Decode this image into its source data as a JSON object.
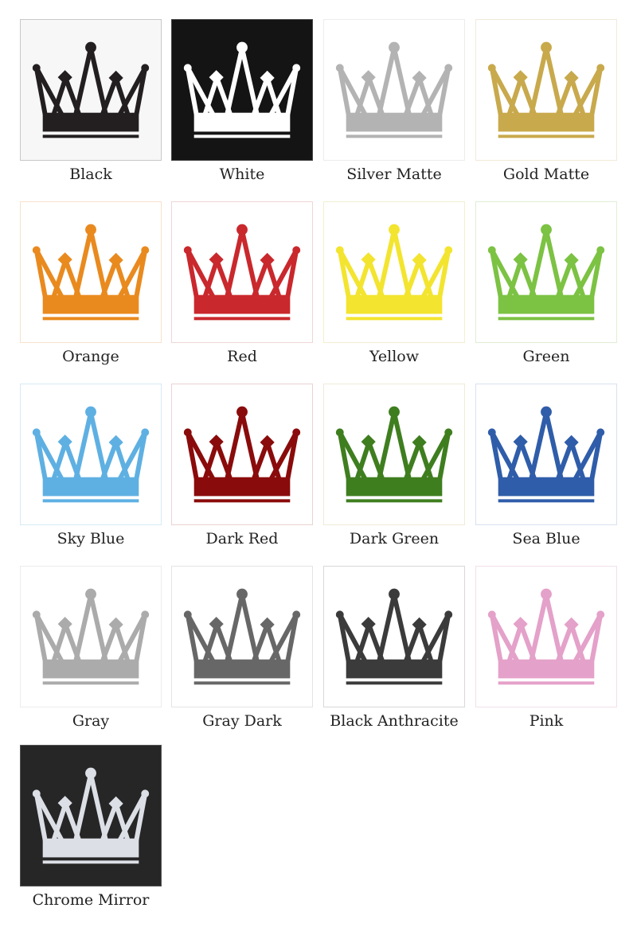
{
  "swatches": [
    {
      "name": "Black",
      "color": "#231f20",
      "background": "#f7f7f7",
      "border": "#c8c8c8"
    },
    {
      "name": "White",
      "color": "#ffffff",
      "background": "#141414",
      "border": "#444444"
    },
    {
      "name": "Silver Matte",
      "color": "#b3b3b3",
      "background": "#ffffff",
      "border": "#ececec"
    },
    {
      "name": "Gold Matte",
      "color": "#c8a94c",
      "background": "#ffffff",
      "border": "#f0ead8"
    },
    {
      "name": "Orange",
      "color": "#e98a1f",
      "background": "#ffffff",
      "border": "#f6e2cc"
    },
    {
      "name": "Red",
      "color": "#c9282d",
      "background": "#ffffff",
      "border": "#f0d6d6"
    },
    {
      "name": "Yellow",
      "color": "#f3e42f",
      "background": "#ffffff",
      "border": "#f4efcf"
    },
    {
      "name": "Green",
      "color": "#7cc243",
      "background": "#ffffff",
      "border": "#e0eed4"
    },
    {
      "name": "Sky Blue",
      "color": "#5fb0e2",
      "background": "#ffffff",
      "border": "#d6eaf4"
    },
    {
      "name": "Dark Red",
      "color": "#8a0b0b",
      "background": "#ffffff",
      "border": "#ecd2d2"
    },
    {
      "name": "Dark Green",
      "color": "#3f7e1f",
      "background": "#ffffff",
      "border": "#f0ead8"
    },
    {
      "name": "Sea Blue",
      "color": "#2f5da9",
      "background": "#ffffff",
      "border": "#d8e2f0"
    },
    {
      "name": "Gray",
      "color": "#ababab",
      "background": "#ffffff",
      "border": "#ececec"
    },
    {
      "name": "Gray Dark",
      "color": "#676767",
      "background": "#ffffff",
      "border": "#e4e4e4"
    },
    {
      "name": "Black Anthracite",
      "color": "#3b3b3b",
      "background": "#ffffff",
      "border": "#d8d8d8"
    },
    {
      "name": "Pink",
      "color": "#e4a1c9",
      "background": "#ffffff",
      "border": "#f2e0ea"
    },
    {
      "name": "Chrome Mirror",
      "color": "#dcdfe6",
      "background": "#262626",
      "border": "#555555"
    }
  ]
}
